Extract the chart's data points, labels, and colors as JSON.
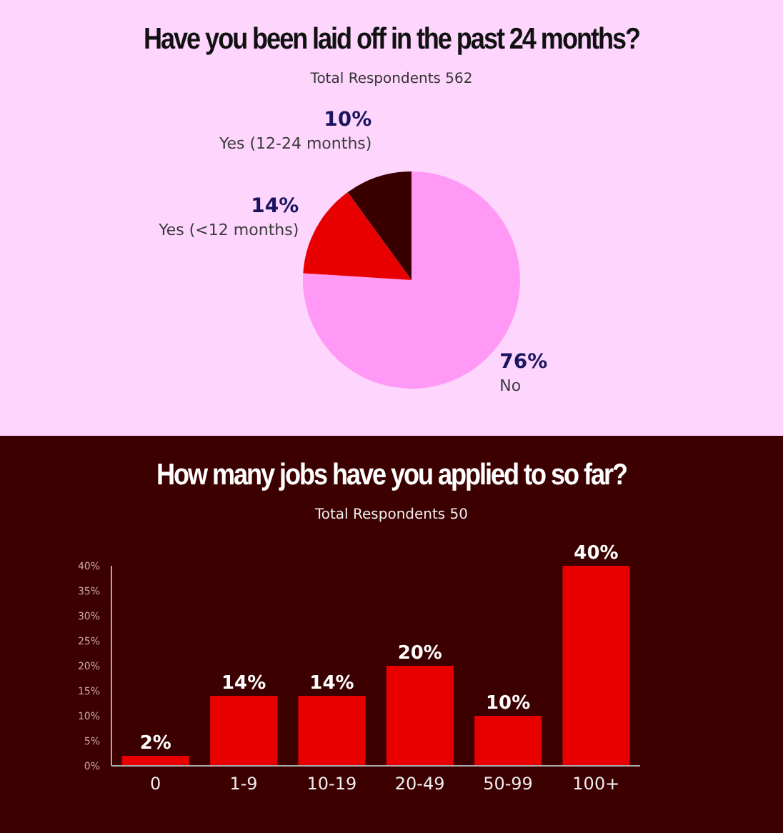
{
  "chart_data": [
    {
      "type": "pie",
      "title": "Have you been laid off in the past 24 months?",
      "subtitle": "Total Respondents 562",
      "categories": [
        "No",
        "Yes (<12 months)",
        "Yes (12-24 months)"
      ],
      "values": [
        76,
        14,
        10
      ],
      "value_labels": [
        "76%",
        "14%",
        "10%"
      ],
      "colors": [
        "#ff99f5",
        "#e80000",
        "#3a0000"
      ]
    },
    {
      "type": "bar",
      "title": "How many jobs have you applied to so far?",
      "subtitle": "Total Respondents 50",
      "categories": [
        "0",
        "1-9",
        "10-19",
        "20-49",
        "50-99",
        "100+"
      ],
      "values": [
        2,
        14,
        14,
        20,
        10,
        40
      ],
      "value_labels": [
        "2%",
        "14%",
        "14%",
        "20%",
        "10%",
        "40%"
      ],
      "color": "#e80000",
      "ylim": [
        0,
        40
      ],
      "yticks": [
        {
          "value": 0,
          "label": "0%"
        },
        {
          "value": 5,
          "label": "5%"
        },
        {
          "value": 10,
          "label": "10%"
        },
        {
          "value": 15,
          "label": "15%"
        },
        {
          "value": 20,
          "label": "20%"
        },
        {
          "value": 25,
          "label": "25%"
        },
        {
          "value": 30,
          "label": "30%"
        },
        {
          "value": 35,
          "label": "35%"
        },
        {
          "value": 40,
          "label": "40%"
        }
      ]
    }
  ]
}
